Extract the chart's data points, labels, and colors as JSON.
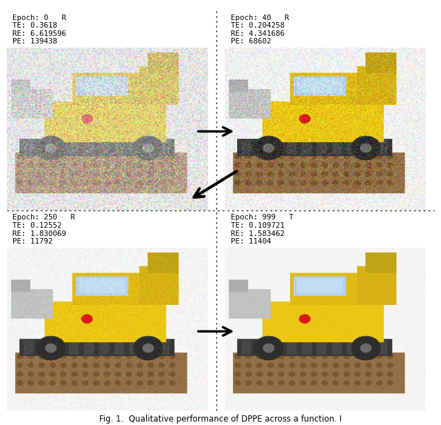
{
  "panels": [
    {
      "row": 0,
      "col": 0,
      "epoch_label": "Epoch: 0   R",
      "te": "TE: 0.3618",
      "re": "RE: 6.619596",
      "pe": "PE: 139438",
      "quality": 0.18
    },
    {
      "row": 0,
      "col": 1,
      "epoch_label": "Epoch: 40   R",
      "te": "TE: 0.204258",
      "re": "RE: 4.341686",
      "pe": "PE: 68602",
      "quality": 0.72
    },
    {
      "row": 1,
      "col": 0,
      "epoch_label": "Epoch: 250   R",
      "te": "TE: 0.12552",
      "re": "RE: 1.830069",
      "pe": "PE: 11792",
      "quality": 0.88
    },
    {
      "row": 1,
      "col": 1,
      "epoch_label": "Epoch: 999   T",
      "te": "TE: 0.109721",
      "re": "RE: 1.583462",
      "pe": "PE: 11404",
      "quality": 0.96
    }
  ],
  "caption": "Fig. 1.  Qualitative performance of DPPE across a function. I",
  "bg_color": "#ffffff",
  "text_color": "#000000",
  "arrow_color": "#000000",
  "divider_color": "#333333",
  "figsize": [
    6.4,
    6.16
  ],
  "dpi": 100
}
